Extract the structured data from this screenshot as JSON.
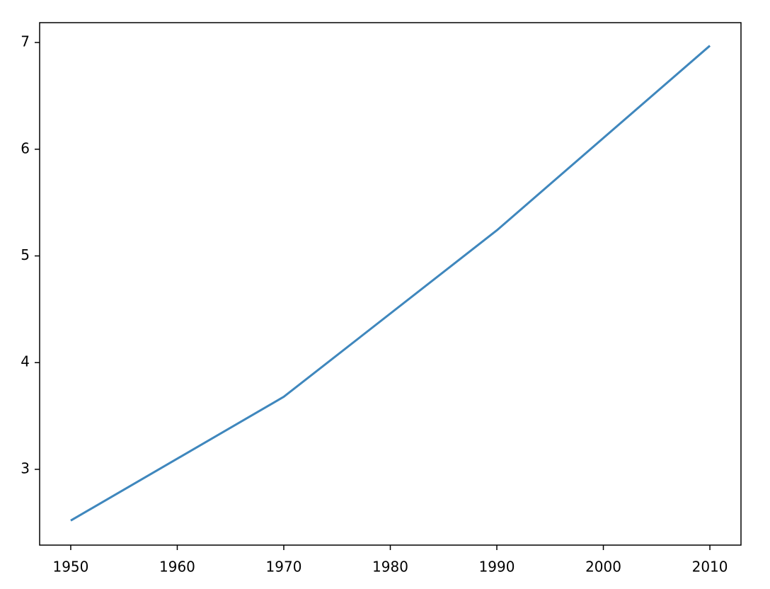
{
  "chart_data": {
    "type": "line",
    "x": [
      1950,
      1970,
      1990,
      2010
    ],
    "series": [
      {
        "color": "#3f87bd",
        "values": [
          2.52,
          3.68,
          5.24,
          6.97
        ]
      }
    ],
    "xlim": [
      1947.08,
      2012.92
    ],
    "ylim": [
      2.29,
      7.186
    ],
    "xticks": [
      1950,
      1960,
      1970,
      1980,
      1990,
      2000,
      2010
    ],
    "yticks": [
      3,
      4,
      5,
      6,
      7
    ],
    "grid": false
  }
}
